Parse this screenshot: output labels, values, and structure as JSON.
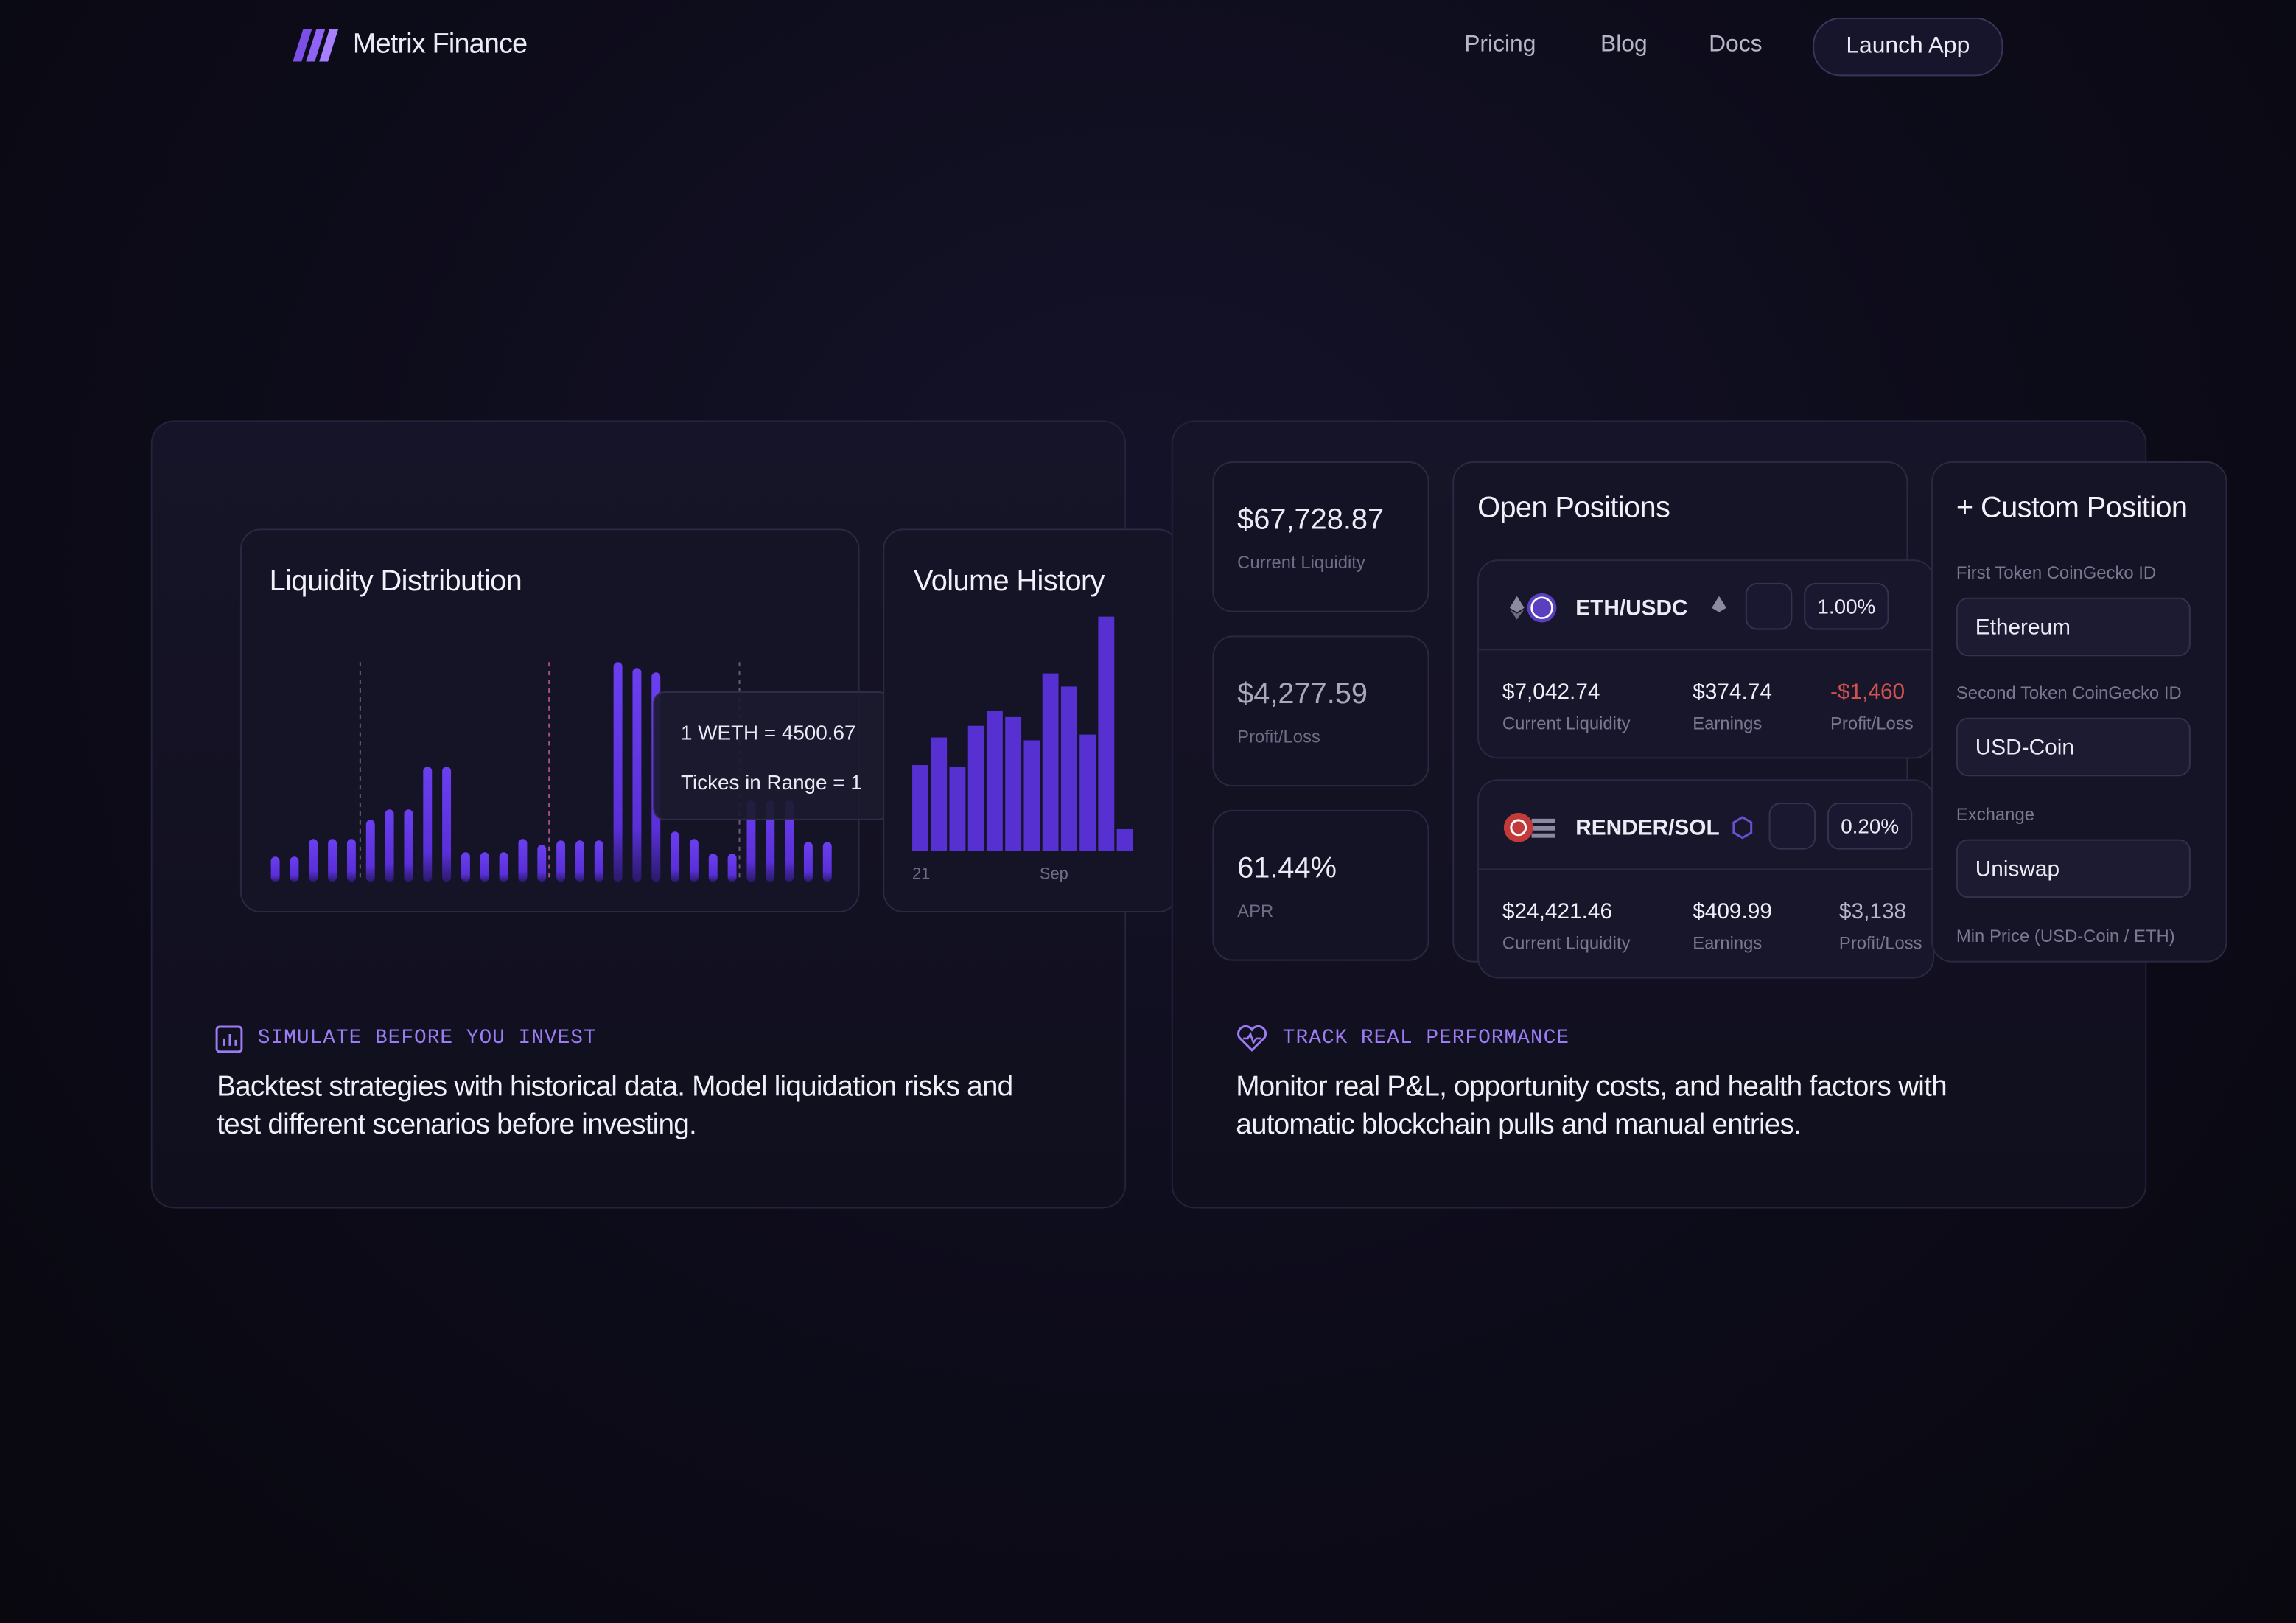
{
  "nav": {
    "brand": "Metrix Finance",
    "links": [
      "Pricing",
      "Blog",
      "Docs"
    ],
    "cta": "Launch App"
  },
  "simulate": {
    "liquidity": {
      "title": "Liquidity Distribution",
      "tooltip": [
        "1 WETH = 4500.67",
        "Tickes in Range = 1"
      ],
      "values": [
        17,
        17,
        29,
        29,
        29,
        42,
        49,
        49,
        78,
        78,
        20,
        20,
        20,
        29,
        25,
        28,
        28,
        28,
        149,
        145,
        142,
        34,
        29,
        19,
        19,
        55,
        55,
        55,
        27,
        27
      ]
    },
    "volume": {
      "title": "Volume History",
      "x_labels": [
        "21",
        "Sep"
      ],
      "values": [
        59,
        78,
        58,
        86,
        96,
        92,
        76,
        122,
        113,
        80,
        161,
        15
      ]
    },
    "label": "SIMULATE BEFORE YOU INVEST",
    "text": "Backtest strategies with historical data. Model liquidation risks and test different scenarios before investing."
  },
  "track": {
    "stats": [
      {
        "value": "$67,728.87",
        "label": "Current Liquidity"
      },
      {
        "value": "$4,277.59",
        "label": "Profit/Loss"
      },
      {
        "value": "61.44%",
        "label": "APR"
      }
    ],
    "positions": {
      "title": "Open Positions",
      "items": [
        {
          "pair": "ETH/USDC",
          "fee": "1.00%",
          "liquidity": "$7,042.74",
          "liquidity_label": "Current Liquidity",
          "earnings": "$374.74",
          "earnings_label": "Earnings",
          "pnl": "-$1,460",
          "pnl_label": "Profit/Loss"
        },
        {
          "pair": "RENDER/SOL",
          "fee": "0.20%",
          "liquidity": "$24,421.46",
          "liquidity_label": "Current Liquidity",
          "earnings": "$409.99",
          "earnings_label": "Earnings",
          "pnl": "$3,138",
          "pnl_label": "Profit/Loss"
        }
      ]
    },
    "custom": {
      "title": "+ Custom Position",
      "fields": [
        {
          "label": "First Token CoinGecko ID",
          "value": "Ethereum"
        },
        {
          "label": "Second Token CoinGecko ID",
          "value": "USD-Coin"
        },
        {
          "label": "Exchange",
          "value": "Uniswap"
        }
      ],
      "last_label": "Min Price (USD-Coin / ETH)"
    },
    "label": "TRACK REAL PERFORMANCE",
    "text": "Monitor real P&L, opportunity costs, and health factors with automatic blockchain pulls and manual entries."
  }
}
